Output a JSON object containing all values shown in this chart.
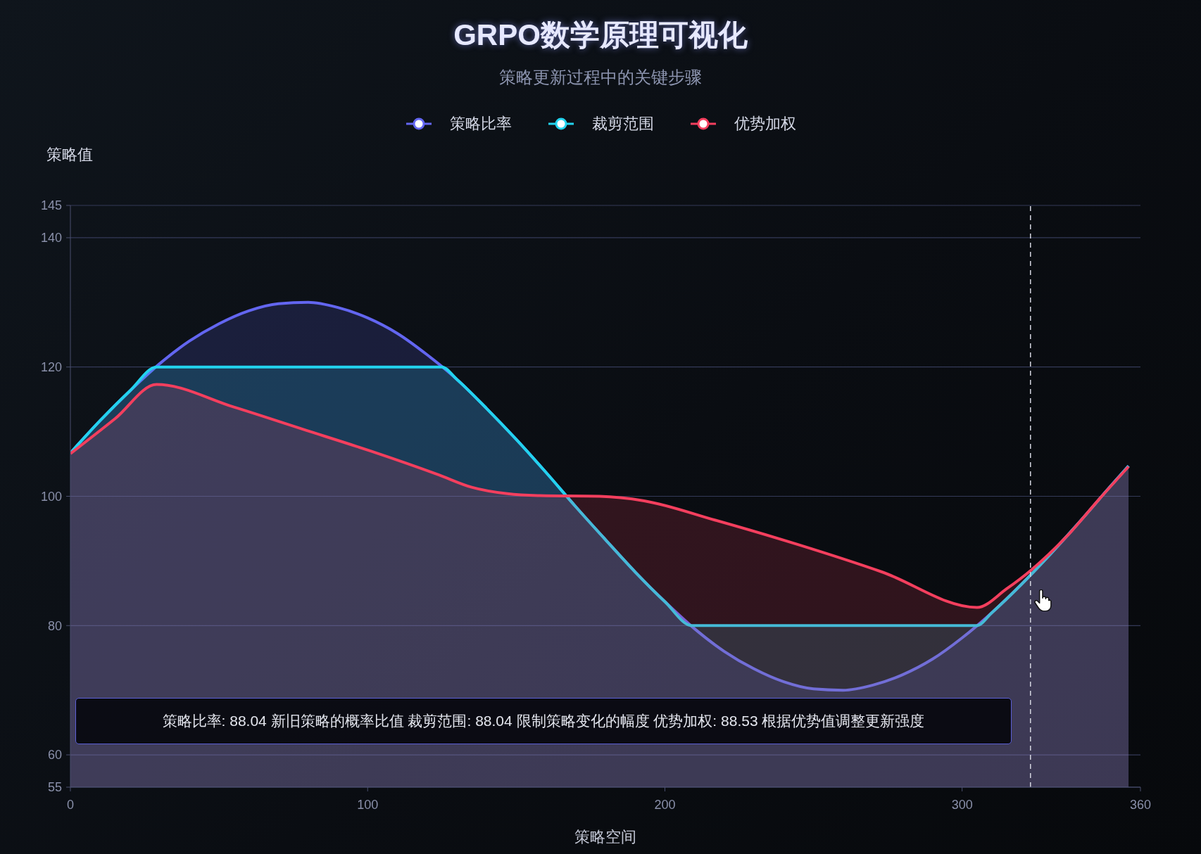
{
  "chart_data": {
    "type": "area",
    "title": "GRPO数学原理可视化",
    "subtitle": "策略更新过程中的关键步骤",
    "xlabel": "策略空间",
    "ylabel": "策略值",
    "xlim": [
      0,
      360
    ],
    "xticks": [
      0,
      100,
      200,
      300,
      360
    ],
    "ylim": [
      55,
      145
    ],
    "yticks": [
      55,
      60,
      80,
      100,
      120,
      140,
      145
    ],
    "grid": "y",
    "legend": "top",
    "series": [
      {
        "name": "策略比率",
        "color": "#6366f1",
        "x": [
          0,
          10,
          20,
          30,
          40,
          50,
          60,
          70,
          80,
          90,
          100,
          110,
          120,
          130,
          140,
          150,
          160,
          170,
          180,
          190,
          200,
          210,
          220,
          230,
          240,
          250,
          260,
          270,
          280,
          290,
          300,
          310,
          320,
          330,
          340,
          350,
          356
        ],
        "values": [
          106.7,
          111.7,
          116.3,
          120.5,
          124.0,
          126.7,
          128.7,
          129.8,
          130.0,
          129.2,
          127.6,
          125.2,
          121.9,
          118.1,
          113.6,
          108.8,
          103.7,
          98.4,
          93.3,
          88.3,
          83.7,
          79.5,
          76.0,
          73.3,
          71.3,
          70.2,
          70.0,
          70.8,
          72.4,
          74.8,
          78.1,
          82.0,
          86.4,
          91.2,
          96.3,
          101.6,
          104.7
        ]
      },
      {
        "name": "裁剪范围",
        "color": "#22d3ee",
        "x": [
          0,
          10,
          20,
          29,
          125,
          130,
          140,
          150,
          160,
          170,
          180,
          190,
          200,
          209,
          305,
          310,
          320,
          330,
          340,
          350,
          356
        ],
        "values": [
          106.7,
          111.7,
          116.3,
          120,
          120,
          118.1,
          113.6,
          108.8,
          103.7,
          98.4,
          93.3,
          88.3,
          83.7,
          80,
          80,
          82.0,
          86.4,
          91.2,
          96.3,
          101.6,
          104.7
        ]
      },
      {
        "name": "优势加权",
        "color": "#f43f5e",
        "x": [
          0,
          15,
          29,
          55,
          78,
          101,
          124,
          135,
          147,
          158,
          178,
          193,
          217,
          245,
          273,
          305,
          315,
          323,
          336,
          346,
          356
        ],
        "values": [
          106.6,
          112.0,
          117.3,
          113.8,
          110.4,
          107.0,
          103.3,
          101.4,
          100.4,
          100.1,
          100.0,
          99.3,
          96.3,
          92.5,
          88.3,
          82.8,
          85.7,
          88.5,
          94.2,
          99.5,
          104.6
        ]
      }
    ],
    "ref_lines": [
      {
        "axis": "x",
        "value": 323,
        "color": "#d4d6e0",
        "line_style": "dashed"
      }
    ],
    "annotations": [
      "策略比率: 88.04 新旧策略的概率比值 裁剪范围: 88.04 限制策略变化的幅度 优势加权: 88.53 根据优势值调整更新强度"
    ]
  }
}
